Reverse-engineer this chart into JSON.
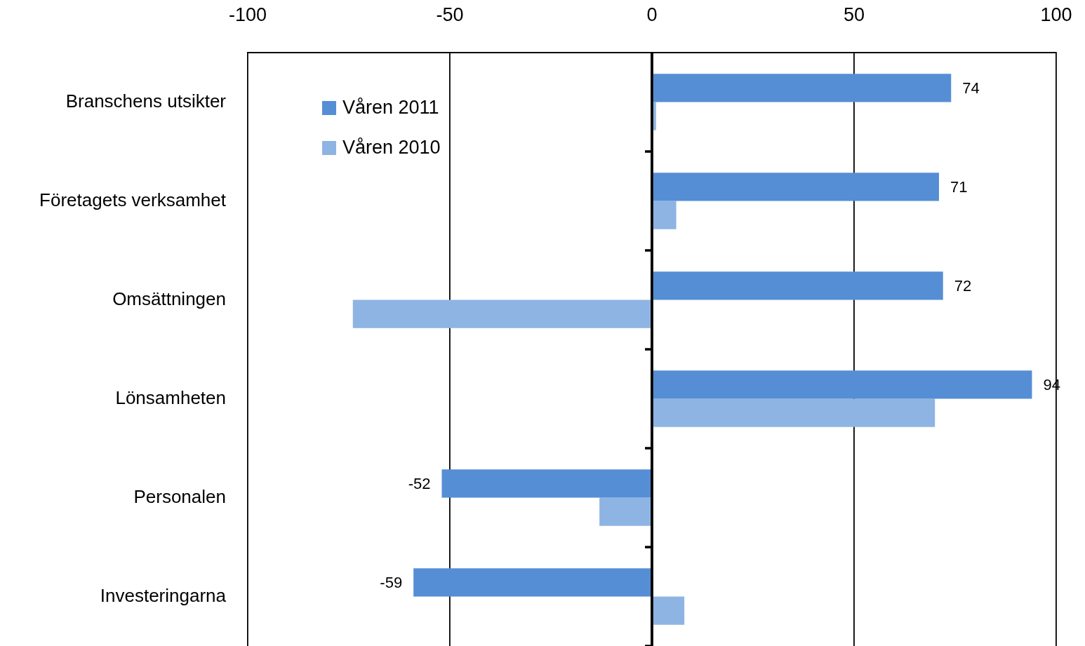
{
  "chart_data": {
    "type": "bar",
    "orientation": "horizontal",
    "categories": [
      "Branschens utsikter",
      "Företagets verksamhet",
      "Omsättningen",
      "Lönsamheten",
      "Personalen",
      "Investeringarna"
    ],
    "series": [
      {
        "name": "Våren 2011",
        "color": "#558ed5",
        "values": [
          74,
          71,
          72,
          94,
          -52,
          -59
        ],
        "value_labels": [
          "74",
          "71",
          "72",
          "94",
          "-52",
          "-59"
        ]
      },
      {
        "name": "Våren 2010",
        "color": "#8eb4e3",
        "values": [
          1,
          6,
          -74,
          70,
          -13,
          8
        ]
      }
    ],
    "xlim": [
      -100,
      100
    ],
    "xticks": [
      -100,
      -50,
      0,
      50,
      100
    ],
    "grid": "x",
    "legend": "top left"
  }
}
